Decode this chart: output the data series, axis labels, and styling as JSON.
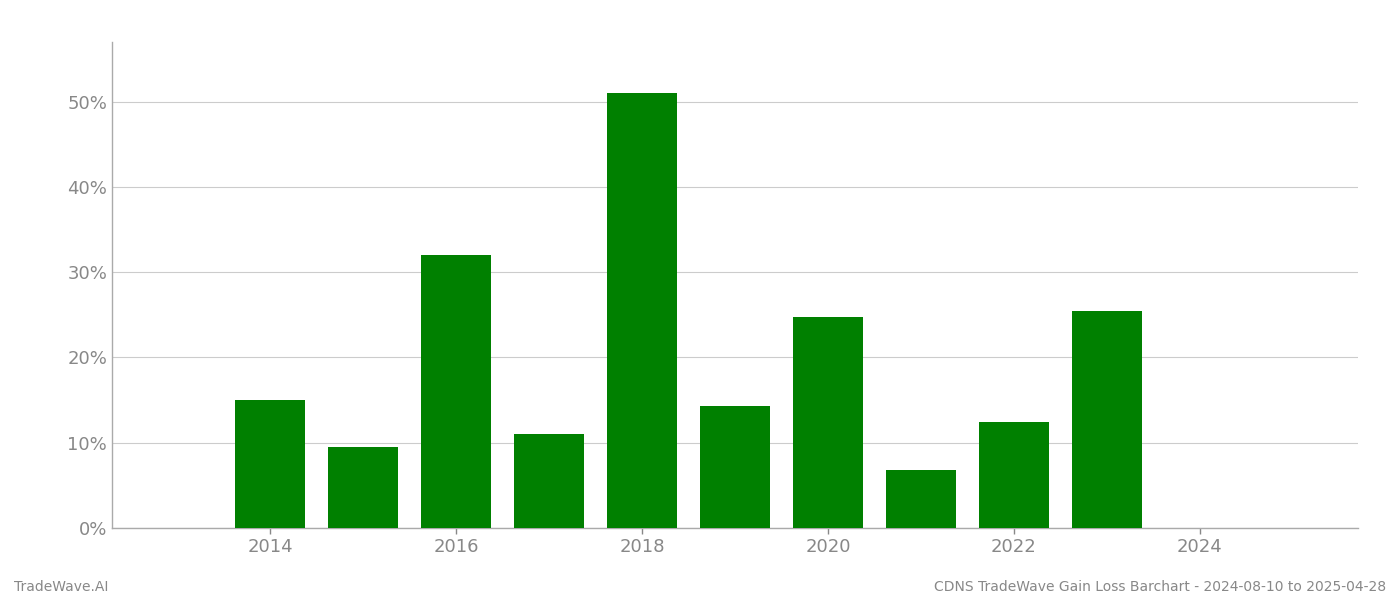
{
  "years": [
    2013,
    2014,
    2015,
    2016,
    2017,
    2018,
    2019,
    2020,
    2021,
    2022,
    2023,
    2024
  ],
  "values": [
    0.0,
    0.15,
    0.095,
    0.32,
    0.11,
    0.51,
    0.143,
    0.248,
    0.068,
    0.124,
    0.255,
    0.0
  ],
  "bar_color": "#008000",
  "background_color": "#ffffff",
  "grid_color": "#cccccc",
  "axis_color": "#aaaaaa",
  "ylabel_color": "#888888",
  "tick_color": "#888888",
  "ylim": [
    0,
    0.57
  ],
  "yticks": [
    0.0,
    0.1,
    0.2,
    0.3,
    0.4,
    0.5
  ],
  "xtick_positions": [
    2014,
    2016,
    2018,
    2020,
    2022,
    2024
  ],
  "xtick_labels": [
    "2014",
    "2016",
    "2018",
    "2020",
    "2022",
    "2024"
  ],
  "xlim_left": 2012.3,
  "xlim_right": 2025.7,
  "footer_left": "TradeWave.AI",
  "footer_right": "CDNS TradeWave Gain Loss Barchart - 2024-08-10 to 2025-04-28",
  "footer_color": "#888888",
  "footer_fontsize": 10,
  "bar_width": 0.75,
  "tick_labelsize": 13
}
